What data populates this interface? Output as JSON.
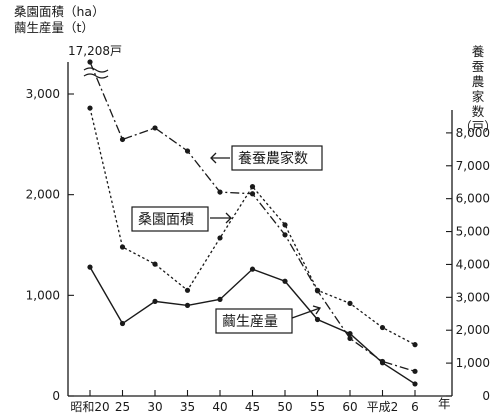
{
  "chart_data": {
    "type": "line",
    "left_axis_title": [
      "桑園面積（ha）",
      "繭生産量（t）"
    ],
    "right_axis_title": [
      "養",
      "蚕",
      "農",
      "家",
      "数",
      "（戸）"
    ],
    "xlabel": "年",
    "categories": [
      "昭和20",
      "25",
      "30",
      "35",
      "40",
      "45",
      "50",
      "55",
      "60",
      "平成2",
      "6"
    ],
    "y_left": {
      "ylim": [
        0,
        3000
      ],
      "ticks": [
        "0",
        "1,000",
        "2,000",
        "3,000"
      ]
    },
    "y_right": {
      "ylim": [
        0,
        9000
      ],
      "ticks": [
        "0",
        "1,000",
        "2,000",
        "3,000",
        "4,000",
        "5,000",
        "6,000",
        "7,000",
        "8,000"
      ]
    },
    "break_annotation": "17,208戸",
    "series": [
      {
        "name": "養蚕農家数",
        "axis": "right",
        "style": "dash-dot",
        "values": [
          17208,
          7800,
          8150,
          7450,
          6200,
          6150,
          4900,
          3200,
          1750,
          1050,
          750
        ]
      },
      {
        "name": "桑園面積",
        "axis": "left",
        "style": "dotted",
        "values": [
          2860,
          1480,
          1310,
          1050,
          1570,
          2080,
          1700,
          1050,
          920,
          680,
          510
        ]
      },
      {
        "name": "繭生産量",
        "axis": "left",
        "style": "solid",
        "values": [
          1280,
          720,
          940,
          900,
          960,
          1260,
          1140,
          760,
          620,
          330,
          120
        ]
      }
    ]
  }
}
